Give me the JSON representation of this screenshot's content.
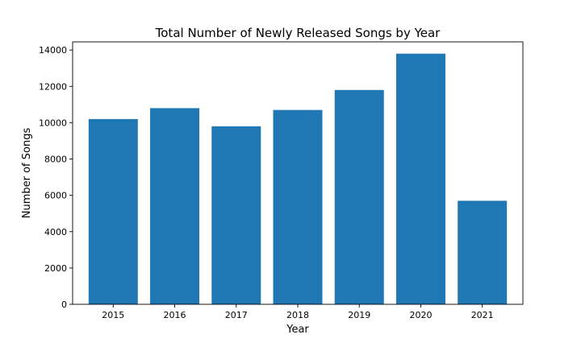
{
  "chart_data": {
    "type": "bar",
    "title": "Total Number of Newly Released Songs by Year",
    "xlabel": "Year",
    "ylabel": "Number of Songs",
    "categories": [
      "2015",
      "2016",
      "2017",
      "2018",
      "2019",
      "2020",
      "2021"
    ],
    "values": [
      10200,
      10800,
      9800,
      10700,
      11800,
      13800,
      5700
    ],
    "ylim": [
      0,
      14450
    ],
    "yticks": [
      0,
      2000,
      4000,
      6000,
      8000,
      10000,
      12000,
      14000
    ],
    "ytick_labels": [
      "0",
      "2000",
      "4000",
      "6000",
      "8000",
      "10000",
      "12000",
      "14000"
    ],
    "bar_color": "#1f77b4",
    "grid": false,
    "legend": "none"
  }
}
